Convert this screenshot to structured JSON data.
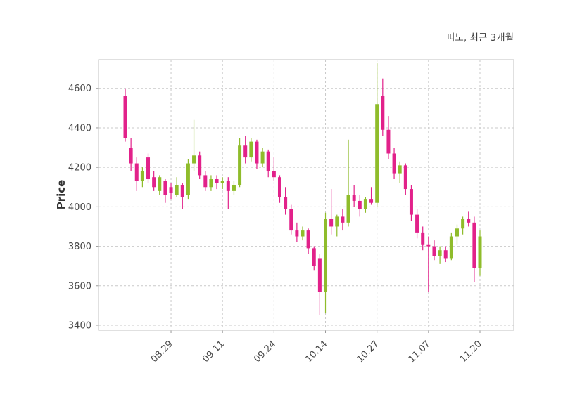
{
  "title": "피노, 최근 3개월",
  "colors": {
    "up": "#8fbc2b",
    "down": "#e2218a",
    "grid": "#c9c9c9",
    "spine": "#cccccc",
    "text": "#474747",
    "background": "#ffffff"
  },
  "chart_data": {
    "type": "candlestick",
    "title": "피노, 최근 3개월",
    "xlabel": "",
    "ylabel": "Price",
    "grid": true,
    "legend": false,
    "y_ticks": [
      3400,
      3600,
      3800,
      4000,
      4200,
      4400,
      4600
    ],
    "ylim": [
      3375,
      4745
    ],
    "x_tick_labels": [
      "08.29",
      "09.11",
      "09.24",
      "10.14",
      "10.27",
      "11.07",
      "11.20"
    ],
    "x_tick_indices": [
      8,
      17,
      26,
      35,
      44,
      53,
      62
    ],
    "up_color": "#8fbc2b",
    "down_color": "#e2218a",
    "candles_format": [
      "open",
      "high",
      "low",
      "close"
    ],
    "candles": [
      [
        4560,
        4600,
        4330,
        4350
      ],
      [
        4300,
        4350,
        4180,
        4220
      ],
      [
        4220,
        4250,
        4080,
        4130
      ],
      [
        4130,
        4200,
        4100,
        4180
      ],
      [
        4250,
        4270,
        4120,
        4140
      ],
      [
        4150,
        4180,
        4080,
        4100
      ],
      [
        4080,
        4160,
        4060,
        4150
      ],
      [
        4130,
        4140,
        4020,
        4060
      ],
      [
        4100,
        4120,
        4040,
        4070
      ],
      [
        4060,
        4150,
        4050,
        4110
      ],
      [
        4110,
        4120,
        3990,
        4050
      ],
      [
        4060,
        4240,
        4040,
        4220
      ],
      [
        4220,
        4440,
        4180,
        4260
      ],
      [
        4260,
        4280,
        4140,
        4160
      ],
      [
        4160,
        4180,
        4080,
        4100
      ],
      [
        4100,
        4160,
        4080,
        4140
      ],
      [
        4140,
        4160,
        4090,
        4120
      ],
      [
        4120,
        4150,
        4090,
        4130
      ],
      [
        4130,
        4150,
        3990,
        4080
      ],
      [
        4080,
        4130,
        4060,
        4110
      ],
      [
        4110,
        4350,
        4100,
        4310
      ],
      [
        4310,
        4360,
        4220,
        4250
      ],
      [
        4250,
        4350,
        4230,
        4330
      ],
      [
        4330,
        4340,
        4190,
        4220
      ],
      [
        4220,
        4300,
        4200,
        4280
      ],
      [
        4280,
        4290,
        4150,
        4180
      ],
      [
        4180,
        4250,
        4130,
        4150
      ],
      [
        4150,
        4160,
        4020,
        4050
      ],
      [
        4050,
        4100,
        3960,
        3990
      ],
      [
        3990,
        4010,
        3860,
        3880
      ],
      [
        3880,
        3920,
        3820,
        3850
      ],
      [
        3850,
        3900,
        3830,
        3880
      ],
      [
        3880,
        3890,
        3760,
        3790
      ],
      [
        3790,
        3800,
        3680,
        3700
      ],
      [
        3740,
        3760,
        3450,
        3570
      ],
      [
        3570,
        3970,
        3460,
        3940
      ],
      [
        3940,
        4090,
        3860,
        3900
      ],
      [
        3900,
        3960,
        3850,
        3950
      ],
      [
        3950,
        3990,
        3880,
        3920
      ],
      [
        3920,
        4340,
        3900,
        4060
      ],
      [
        4060,
        4110,
        4000,
        4030
      ],
      [
        4030,
        4060,
        3950,
        3990
      ],
      [
        3990,
        4050,
        3970,
        4040
      ],
      [
        4040,
        4100,
        4010,
        4020
      ],
      [
        4020,
        4730,
        4000,
        4520
      ],
      [
        4560,
        4650,
        4360,
        4390
      ],
      [
        4390,
        4460,
        4240,
        4270
      ],
      [
        4270,
        4300,
        4140,
        4170
      ],
      [
        4170,
        4230,
        4120,
        4210
      ],
      [
        4210,
        4220,
        4060,
        4090
      ],
      [
        4090,
        4110,
        3930,
        3960
      ],
      [
        3960,
        3990,
        3840,
        3870
      ],
      [
        3870,
        3900,
        3780,
        3810
      ],
      [
        3810,
        3850,
        3570,
        3800
      ],
      [
        3800,
        3830,
        3730,
        3750
      ],
      [
        3750,
        3800,
        3710,
        3780
      ],
      [
        3780,
        3800,
        3720,
        3740
      ],
      [
        3740,
        3870,
        3730,
        3850
      ],
      [
        3850,
        3910,
        3810,
        3890
      ],
      [
        3890,
        3950,
        3860,
        3940
      ],
      [
        3940,
        3975,
        3900,
        3920
      ],
      [
        3920,
        3950,
        3620,
        3690
      ],
      [
        3690,
        3880,
        3650,
        3850
      ]
    ]
  }
}
